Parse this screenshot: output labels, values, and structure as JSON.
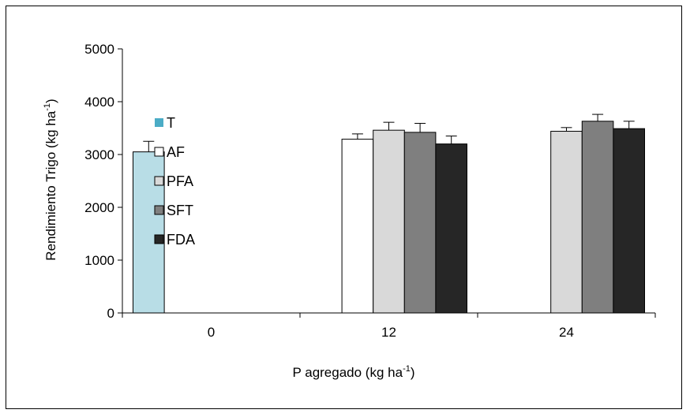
{
  "chart_data": {
    "type": "bar",
    "xlabel": "P agregado (kg ha",
    "xlabel_sup": "-1",
    "xlabel_close": ")",
    "ylabel": "Rendimiento Trigo (kg ha",
    "ylabel_sup": "-1",
    "ylabel_close": ")",
    "ylim": [
      0,
      5000
    ],
    "yticks": [
      "0",
      "1000",
      "2000",
      "3000",
      "4000",
      "5000"
    ],
    "categories": [
      "0",
      "12",
      "24"
    ],
    "legend_position": "left",
    "series": [
      {
        "name": "T",
        "color": "#b8dde6",
        "legend_color": "#4bacc6",
        "values": [
          3050,
          null,
          null
        ],
        "errors": [
          200,
          null,
          null
        ]
      },
      {
        "name": "AF",
        "color": "#ffffff",
        "legend_color": "#ffffff",
        "values": [
          null,
          3290,
          null
        ],
        "errors": [
          null,
          100,
          null
        ]
      },
      {
        "name": "PFA",
        "color": "#d9d9d9",
        "legend_color": "#d9d9d9",
        "values": [
          null,
          3460,
          3440
        ],
        "errors": [
          null,
          150,
          70
        ]
      },
      {
        "name": "SFT",
        "color": "#7f7f7f",
        "legend_color": "#7f7f7f",
        "values": [
          null,
          3420,
          3630
        ],
        "errors": [
          null,
          170,
          130
        ]
      },
      {
        "name": "FDA",
        "color": "#262626",
        "legend_color": "#262626",
        "values": [
          null,
          3200,
          3490
        ],
        "errors": [
          null,
          150,
          140
        ]
      }
    ]
  }
}
